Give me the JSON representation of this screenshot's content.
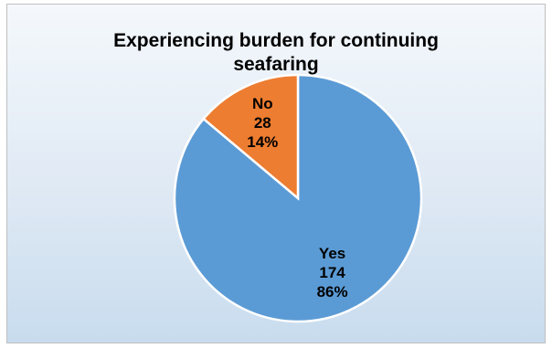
{
  "chart_data": {
    "type": "pie",
    "title": "Experiencing burden for continuing seafaring",
    "title_lines": [
      "Experiencing burden for continuing",
      "seafaring"
    ],
    "categories": [
      "Yes",
      "No"
    ],
    "values": [
      174,
      28
    ],
    "percentages": [
      "86%",
      "14%"
    ],
    "colors": [
      "#5b9bd5",
      "#ed7d31"
    ],
    "legend": "none",
    "data_labels": "inside"
  }
}
